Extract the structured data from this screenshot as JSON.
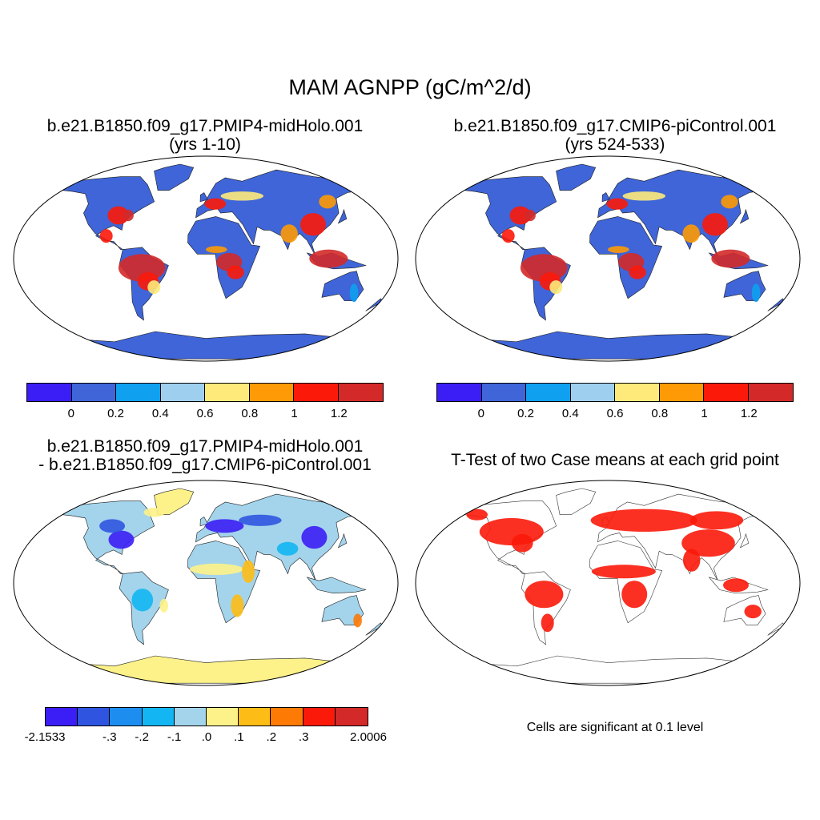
{
  "figure": {
    "title": "MAM AGNPP (gC/m^2/d)"
  },
  "panels": {
    "top_left": {
      "title_line1": "b.e21.B1850.f09_g17.PMIP4-midHolo.001",
      "title_line2": "(yrs 1-10)"
    },
    "top_right": {
      "title_line1": "b.e21.B1850.f09_g17.CMIP6-piControl.001",
      "title_line2": "(yrs 524-533)"
    },
    "bottom_left": {
      "title_line1": "b.e21.B1850.f09_g17.PMIP4-midHolo.001",
      "title_line2": "- b.e21.B1850.f09_g17.CMIP6-piControl.001"
    },
    "bottom_right": {
      "title_line1": "T-Test of two Case means at each grid point",
      "note": "Cells are significant at 0.1 level"
    }
  },
  "colorbars": {
    "abs": {
      "colors": [
        "#3b1ef5",
        "#3f65d8",
        "#0fa0f0",
        "#9fcfee",
        "#fdea7a",
        "#fd9a05",
        "#fb1a0a",
        "#d32929"
      ],
      "labels": [
        "0",
        "0.2",
        "0.4",
        "0.6",
        "0.8",
        "1",
        "1.2"
      ]
    },
    "diff": {
      "colors": [
        "#3b1ef5",
        "#2f55e0",
        "#1d8ef0",
        "#13b6f2",
        "#a3d4ec",
        "#fdf28a",
        "#fdbc16",
        "#fd7a05",
        "#fb1a0a",
        "#d32929"
      ],
      "labels": [
        "-2.1533",
        "-.3",
        "-.2",
        "-.1",
        ".0",
        ".1",
        ".2",
        ".3",
        "2.0006"
      ]
    }
  },
  "chart_data": {
    "type": "heatmap",
    "title": "MAM AGNPP (gC/m^2/d)",
    "colorbar_abs_levels": [
      0,
      0.2,
      0.4,
      0.6,
      0.8,
      1,
      1.2
    ],
    "colorbar_diff_levels": [
      -2.1533,
      -0.3,
      -0.2,
      -0.1,
      0.0,
      0.1,
      0.2,
      0.3,
      2.0006
    ],
    "significance_level": 0.1
  }
}
